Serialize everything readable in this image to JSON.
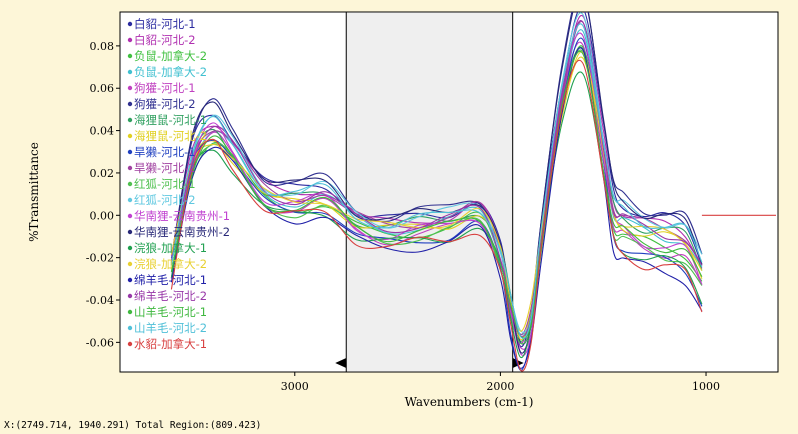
{
  "status_bar": {
    "text": "X:(2749.714, 1940.291) Total Region:(809.423)"
  },
  "colors": {
    "background": "#fdf6d8",
    "plot_background": "#ffffff",
    "region_fill": "#efefef"
  },
  "chart_data": {
    "type": "line",
    "xlabel": "Wavenumbers (cm-1)",
    "ylabel": "%Transmittance",
    "xlim": [
      3850,
      650
    ],
    "ylim": [
      -0.074,
      0.096
    ],
    "x_reversed": true,
    "grid": false,
    "legend_position": "top-left",
    "xticks": [
      3000,
      2000,
      1000
    ],
    "yticks": [
      0.08,
      0.06,
      0.04,
      0.02,
      0.0,
      -0.02,
      -0.04,
      -0.06
    ],
    "ytick_labels": [
      "0.08",
      "0.06",
      "0.04",
      "0.02",
      "0.00",
      "-0.02",
      "-0.04",
      "-0.06"
    ],
    "xtick_labels": [
      "3000",
      "2000",
      "1000"
    ],
    "selected_region": [
      2749.714,
      1940.291
    ],
    "total_region": 809.423,
    "x": [
      3600,
      3500,
      3400,
      3300,
      3150,
      3000,
      2850,
      2700,
      2550,
      2400,
      2250,
      2100,
      2000,
      1950,
      1900,
      1850,
      1800,
      1700,
      1600,
      1500,
      1450,
      1400,
      1300,
      1200,
      1100,
      1020
    ],
    "base_values": [
      -0.025,
      0.025,
      0.04,
      0.03,
      0.01,
      0.006,
      0.008,
      -0.004,
      -0.008,
      -0.006,
      -0.004,
      0.0,
      -0.02,
      -0.045,
      -0.062,
      -0.05,
      -0.01,
      0.055,
      0.085,
      0.03,
      0.0,
      -0.005,
      -0.01,
      -0.012,
      -0.015,
      -0.03
    ],
    "series": [
      {
        "name": "白貂-河北-1",
        "color": "#2b2ba0",
        "offset": 0.006,
        "scale": 1.05
      },
      {
        "name": "白貂-河北-2",
        "color": "#b030b0",
        "offset": 0.004,
        "scale": 1.02
      },
      {
        "name": "负鼠-加拿大-2",
        "color": "#40c040",
        "offset": -0.002,
        "scale": 0.95
      },
      {
        "name": "负鼠-加拿大-2",
        "color": "#40c0d0",
        "offset": 0.001,
        "scale": 0.97
      },
      {
        "name": "狗獾-河北-1",
        "color": "#c040c0",
        "offset": -0.003,
        "scale": 1.0
      },
      {
        "name": "狗獾-河北-2",
        "color": "#303090",
        "offset": 0.008,
        "scale": 1.1
      },
      {
        "name": "海狸鼠-河北-1",
        "color": "#30a060",
        "offset": 0.002,
        "scale": 0.92
      },
      {
        "name": "海狸鼠-河北-2",
        "color": "#e0d020",
        "offset": 0.0,
        "scale": 0.9
      },
      {
        "name": "旱獭-河北-1",
        "color": "#2040c0",
        "offset": -0.005,
        "scale": 1.08
      },
      {
        "name": "旱獭-河北-2",
        "color": "#a040a0",
        "offset": 0.003,
        "scale": 0.98
      },
      {
        "name": "红狐-河北-1",
        "color": "#50c050",
        "offset": -0.004,
        "scale": 0.96
      },
      {
        "name": "红狐-河北-2",
        "color": "#60c8e0",
        "offset": 0.005,
        "scale": 1.0
      },
      {
        "name": "华南狸-云南贵州-1",
        "color": "#c040d0",
        "offset": -0.001,
        "scale": 1.04
      },
      {
        "name": "华南狸-云南贵州-2",
        "color": "#282878",
        "offset": 0.007,
        "scale": 1.12
      },
      {
        "name": "浣狼-加拿大-1",
        "color": "#20a050",
        "offset": -0.006,
        "scale": 0.94
      },
      {
        "name": "浣狼-加拿大-2",
        "color": "#e8d030",
        "offset": 0.001,
        "scale": 0.88
      },
      {
        "name": "绵羊毛-河北-1",
        "color": "#2020a8",
        "offset": -0.008,
        "scale": 1.06
      },
      {
        "name": "绵羊毛-河北-2",
        "color": "#9838a8",
        "offset": 0.002,
        "scale": 1.0
      },
      {
        "name": "山羊毛-河北-1",
        "color": "#40b840",
        "offset": -0.002,
        "scale": 0.93
      },
      {
        "name": "山羊毛-河北-2",
        "color": "#50c0d8",
        "offset": 0.004,
        "scale": 0.99
      },
      {
        "name": "水貂-加拿大-1",
        "color": "#d84040",
        "offset": -0.007,
        "scale": 1.03
      }
    ]
  }
}
